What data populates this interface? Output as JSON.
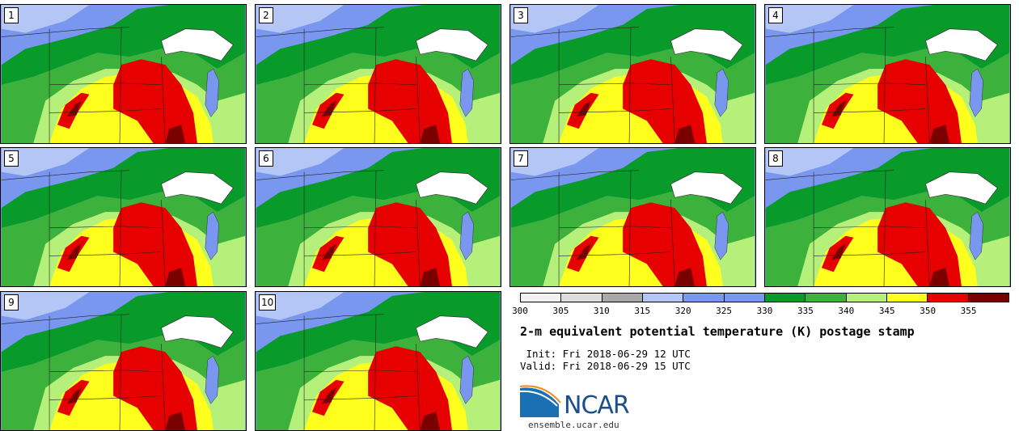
{
  "panels": [
    {
      "label": "1"
    },
    {
      "label": "2"
    },
    {
      "label": "3"
    },
    {
      "label": "4"
    },
    {
      "label": "5"
    },
    {
      "label": "6"
    },
    {
      "label": "7"
    },
    {
      "label": "8"
    },
    {
      "label": "9"
    },
    {
      "label": "10"
    }
  ],
  "colorbar": {
    "ticks": [
      "300",
      "305",
      "310",
      "315",
      "320",
      "325",
      "330",
      "335",
      "340",
      "345",
      "350",
      "355"
    ],
    "colors": [
      "#f2f2f2",
      "#dedede",
      "#a9a9a9",
      "#b4c6f5",
      "#7a97f0",
      "#7a97f0",
      "#089b2a",
      "#3cb23c",
      "#b4f07a",
      "#ffff1e",
      "#e60000",
      "#7a0000"
    ]
  },
  "title": "2-m equivalent potential temperature (K) postage stamp",
  "init": " Init: Fri 2018-06-29 12 UTC",
  "valid": "Valid: Fri 2018-06-29 15 UTC",
  "logo": {
    "name": "NCAR",
    "website": "ensemble.ucar.edu"
  }
}
